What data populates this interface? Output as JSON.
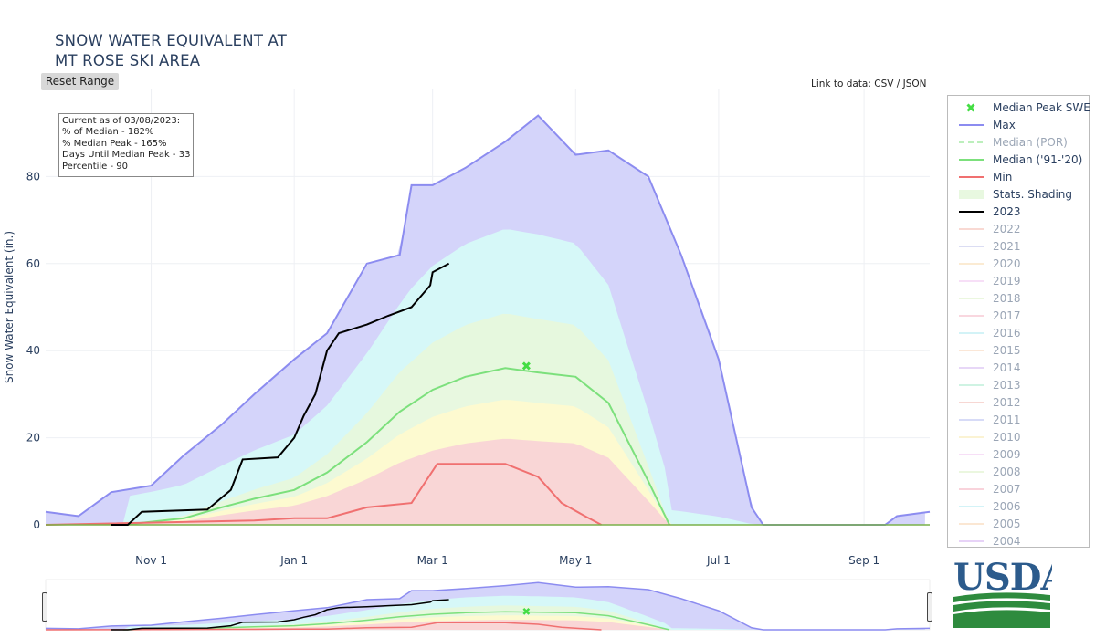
{
  "title_line1": "SNOW WATER EQUIVALENT AT",
  "title_line2": "MT ROSE SKI AREA",
  "reset_label": "Reset Range",
  "link_text": {
    "prefix": "Link to data: ",
    "csv": "CSV",
    "sep": " / ",
    "json": "JSON"
  },
  "info_lines": [
    "Current as of 03/08/2023:",
    "% of Median - 182%",
    "% Median Peak - 165%",
    "Days Until Median Peak - 33",
    "Percentile - 90"
  ],
  "usda_text": "USDA",
  "colors": {
    "max": "#8c8cf0",
    "median": "#7ce07c",
    "min": "#f07070",
    "current": "#000000",
    "peak": "#44dd44"
  },
  "chart_data": {
    "type": "area",
    "title": "SNOW WATER EQUIVALENT AT MT ROSE SKI AREA",
    "ylabel": "Snow Water Equivalent (in.)",
    "xlabel": "",
    "ylim": [
      0,
      100
    ],
    "xlim": [
      "2022-09-17",
      "2023-09-29"
    ],
    "x_ticks": [
      {
        "date": "2022-11-01",
        "label": "Nov 1"
      },
      {
        "date": "2023-01-01",
        "label": "Jan 1"
      },
      {
        "date": "2023-03-01",
        "label": "Mar 1"
      },
      {
        "date": "2023-05-01",
        "label": "May 1"
      },
      {
        "date": "2023-07-01",
        "label": "Jul 1"
      },
      {
        "date": "2023-09-01",
        "label": "Sep 1"
      }
    ],
    "y_ticks": [
      0,
      20,
      40,
      60,
      80
    ],
    "grid": true,
    "legend_position": "right",
    "series": [
      {
        "name": "Max",
        "color": "#8c8cf0",
        "points": [
          [
            "2022-09-17",
            3
          ],
          [
            "2022-10-01",
            2
          ],
          [
            "2022-10-15",
            7.5
          ],
          [
            "2022-11-01",
            9
          ],
          [
            "2022-11-15",
            16
          ],
          [
            "2022-12-01",
            23
          ],
          [
            "2022-12-15",
            30
          ],
          [
            "2023-01-01",
            38
          ],
          [
            "2023-01-15",
            44
          ],
          [
            "2023-02-01",
            60
          ],
          [
            "2023-02-15",
            62
          ],
          [
            "2023-02-20",
            78
          ],
          [
            "2023-03-01",
            78
          ],
          [
            "2023-03-15",
            82
          ],
          [
            "2023-04-01",
            88
          ],
          [
            "2023-04-15",
            94
          ],
          [
            "2023-05-01",
            85
          ],
          [
            "2023-05-15",
            86
          ],
          [
            "2023-06-01",
            80
          ],
          [
            "2023-06-15",
            62
          ],
          [
            "2023-07-01",
            38
          ],
          [
            "2023-07-15",
            4
          ],
          [
            "2023-07-20",
            0
          ],
          [
            "2023-09-10",
            0
          ],
          [
            "2023-09-15",
            2
          ],
          [
            "2023-09-29",
            3
          ]
        ]
      },
      {
        "name": "Median ('91-'20)",
        "color": "#7ce07c",
        "points": [
          [
            "2022-10-20",
            0
          ],
          [
            "2022-11-15",
            1.5
          ],
          [
            "2022-12-01",
            4
          ],
          [
            "2022-12-15",
            6
          ],
          [
            "2023-01-01",
            8
          ],
          [
            "2023-01-15",
            12
          ],
          [
            "2023-02-01",
            19
          ],
          [
            "2023-02-15",
            26
          ],
          [
            "2023-03-01",
            31
          ],
          [
            "2023-03-15",
            34
          ],
          [
            "2023-04-01",
            36
          ],
          [
            "2023-04-15",
            35
          ],
          [
            "2023-05-01",
            34
          ],
          [
            "2023-05-15",
            28
          ],
          [
            "2023-06-01",
            10
          ],
          [
            "2023-06-10",
            0
          ]
        ]
      },
      {
        "name": "Min",
        "color": "#f07070",
        "points": [
          [
            "2022-09-17",
            0
          ],
          [
            "2022-12-15",
            1
          ],
          [
            "2023-01-01",
            1.5
          ],
          [
            "2023-01-15",
            1.5
          ],
          [
            "2023-02-01",
            4
          ],
          [
            "2023-02-20",
            5
          ],
          [
            "2023-03-03",
            14
          ],
          [
            "2023-03-15",
            14
          ],
          [
            "2023-04-01",
            14
          ],
          [
            "2023-04-15",
            11
          ],
          [
            "2023-04-25",
            5
          ],
          [
            "2023-05-05",
            2
          ],
          [
            "2023-05-12",
            0
          ]
        ]
      },
      {
        "name": "2023",
        "color": "#000000",
        "points": [
          [
            "2022-10-15",
            0
          ],
          [
            "2022-10-22",
            0
          ],
          [
            "2022-10-28",
            3
          ],
          [
            "2022-11-25",
            3.5
          ],
          [
            "2022-12-05",
            8
          ],
          [
            "2022-12-10",
            15
          ],
          [
            "2022-12-25",
            15.5
          ],
          [
            "2023-01-01",
            20
          ],
          [
            "2023-01-05",
            25
          ],
          [
            "2023-01-10",
            30
          ],
          [
            "2023-01-15",
            40
          ],
          [
            "2023-01-20",
            44
          ],
          [
            "2023-02-01",
            46
          ],
          [
            "2023-02-10",
            48
          ],
          [
            "2023-02-20",
            50
          ],
          [
            "2023-02-28",
            55
          ],
          [
            "2023-03-01",
            58
          ],
          [
            "2023-03-08",
            60
          ]
        ]
      }
    ],
    "markers": [
      {
        "name": "Median Peak SWE",
        "x": "2023-04-10",
        "y": 36.5,
        "symbol": "x"
      }
    ]
  },
  "legend": [
    {
      "label": "Median Peak SWE",
      "type": "marker",
      "color": "#44dd44",
      "on": true
    },
    {
      "label": "Max",
      "type": "line",
      "color": "#8c8cf0",
      "on": true
    },
    {
      "label": "Median (POR)",
      "type": "dash",
      "color": "#7ce07c",
      "on": false
    },
    {
      "label": "Median ('91-'20)",
      "type": "line",
      "color": "#7ce07c",
      "on": true
    },
    {
      "label": "Min",
      "type": "line",
      "color": "#f07070",
      "on": true
    },
    {
      "label": "Stats. Shading",
      "type": "fill",
      "color": "#e8f8e0",
      "on": true
    },
    {
      "label": "2023",
      "type": "line",
      "color": "#000000",
      "on": true
    },
    {
      "label": "2022",
      "type": "line",
      "color": "#f5b5a8",
      "on": false
    },
    {
      "label": "2021",
      "type": "line",
      "color": "#b8bce8",
      "on": false
    },
    {
      "label": "2020",
      "type": "line",
      "color": "#f8d8a8",
      "on": false
    },
    {
      "label": "2019",
      "type": "line",
      "color": "#f0c0f0",
      "on": false
    },
    {
      "label": "2018",
      "type": "line",
      "color": "#d8f0c0",
      "on": false
    },
    {
      "label": "2017",
      "type": "line",
      "color": "#f5b0c0",
      "on": false
    },
    {
      "label": "2016",
      "type": "line",
      "color": "#a8e8f0",
      "on": false
    },
    {
      "label": "2015",
      "type": "line",
      "color": "#f8d0b0",
      "on": false
    },
    {
      "label": "2014",
      "type": "line",
      "color": "#d0b0f0",
      "on": false
    },
    {
      "label": "2013",
      "type": "line",
      "color": "#a0e8c8",
      "on": false
    },
    {
      "label": "2012",
      "type": "line",
      "color": "#f0b0a8",
      "on": false
    },
    {
      "label": "2011",
      "type": "line",
      "color": "#b0b8f0",
      "on": false
    },
    {
      "label": "2010",
      "type": "line",
      "color": "#f8e8a8",
      "on": false
    },
    {
      "label": "2009",
      "type": "line",
      "color": "#f0c0f0",
      "on": false
    },
    {
      "label": "2008",
      "type": "line",
      "color": "#d8f0c0",
      "on": false
    },
    {
      "label": "2007",
      "type": "line",
      "color": "#f5a8b8",
      "on": false
    },
    {
      "label": "2006",
      "type": "line",
      "color": "#a8e8f0",
      "on": false
    },
    {
      "label": "2005",
      "type": "line",
      "color": "#f8d0a8",
      "on": false
    },
    {
      "label": "2004",
      "type": "line",
      "color": "#d0a8f0",
      "on": false
    }
  ]
}
